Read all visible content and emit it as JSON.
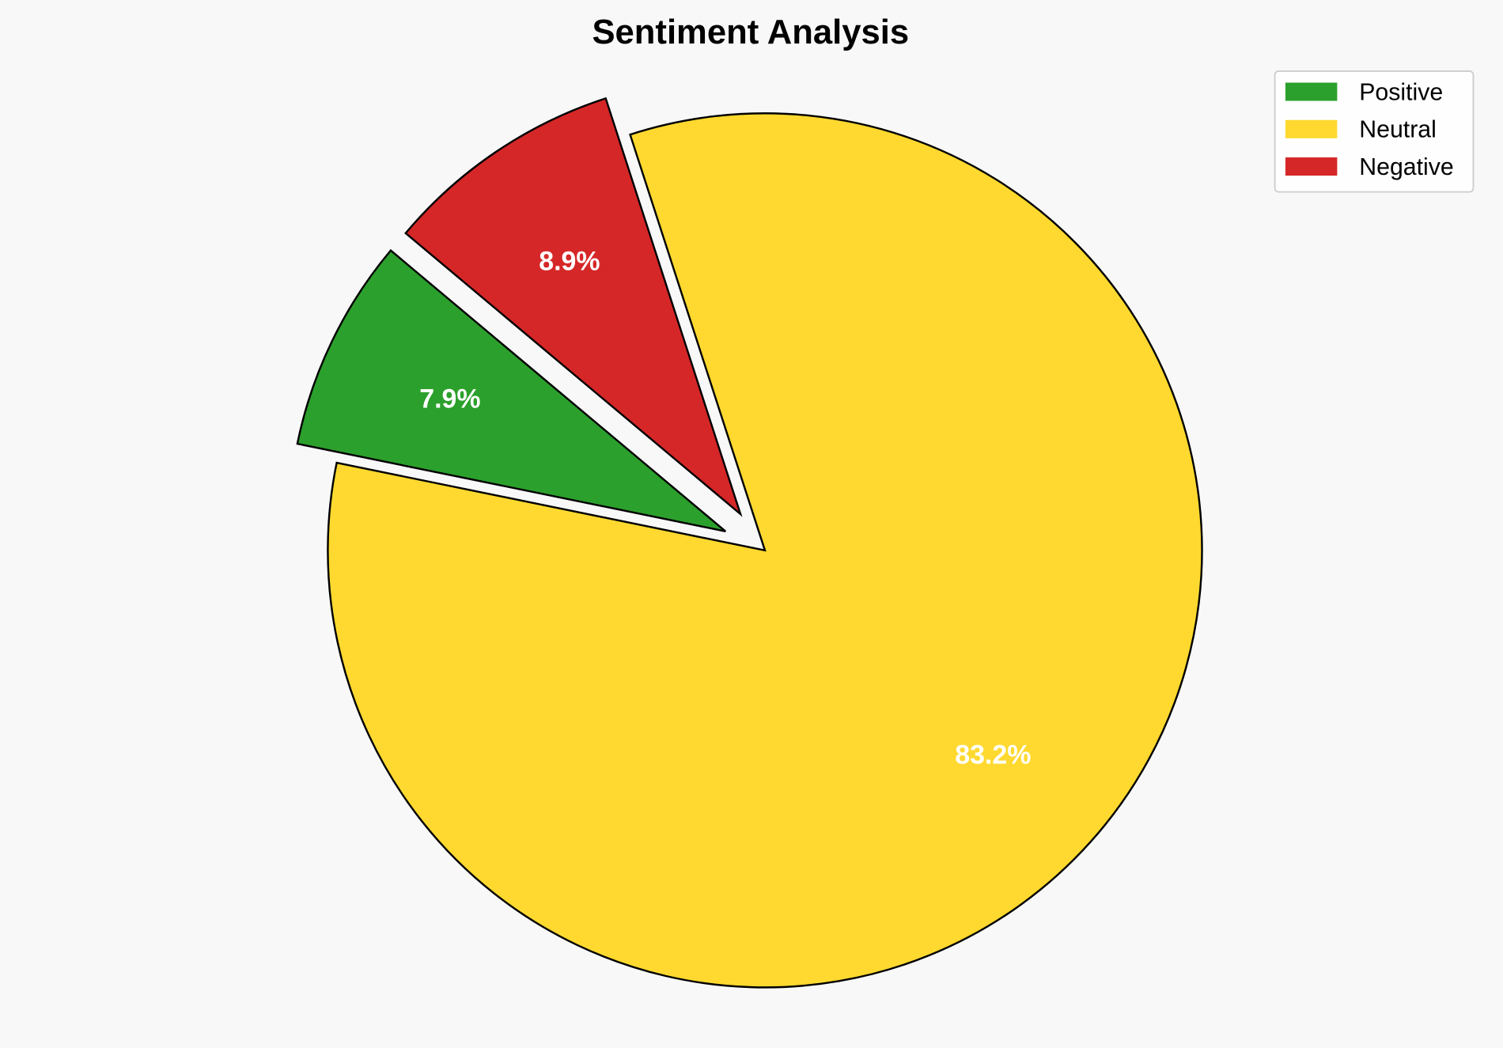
{
  "chart_data": {
    "type": "pie",
    "title": "Sentiment Analysis",
    "categories": [
      "Positive",
      "Neutral",
      "Negative"
    ],
    "values": [
      7.9,
      83.2,
      8.9
    ],
    "labels": [
      "7.9%",
      "83.2%",
      "8.9%"
    ],
    "colors": [
      "#2ca02c",
      "#ffd92f",
      "#d62728"
    ],
    "explode": [
      0.1,
      0,
      0.1
    ],
    "start_angle": 140,
    "direction": "counterclockwise",
    "legend": {
      "placement": "top-right",
      "entries": [
        "Positive",
        "Neutral",
        "Negative"
      ]
    },
    "background": "#f8f8f8",
    "label_color": "#ffffff",
    "edge_color": "#000000"
  }
}
